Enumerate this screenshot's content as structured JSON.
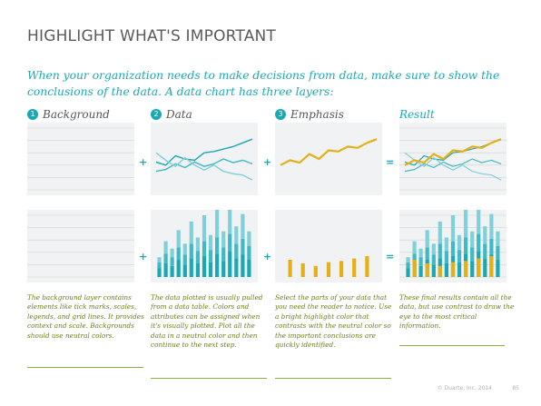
{
  "title": "HIGHLIGHT WHAT'S IMPORTANT",
  "intro": "When your organization needs to make decisions from data, make sure to show the conclusions of the data. A data chart has three layers:",
  "columns": [
    {
      "num": "1",
      "header": "Background",
      "desc": "The background layer contains elements like tick marks, scales, legends, and grid lines. It provides context and scale. Backgrounds should use neutral colors."
    },
    {
      "num": "2",
      "header": "Data",
      "desc": "The data plotted is usually pulled from a data table. Colors and attributes can be assigned when it's visually plotted. Plot all the data in a neutral color and then continue to the next step."
    },
    {
      "num": "3",
      "header": "Emphasis",
      "desc": "Select the parts of your data that you need the reader to notice. Use a bright highlight color that contrasts with the neutral color so the important conclusions are quickly identified."
    },
    {
      "num": "",
      "header": "Result",
      "desc": "These final results contain all the data, but use contrast to draw the eye to the most critical information."
    }
  ],
  "operators": {
    "plus": "+",
    "equals": "="
  },
  "footer": "© Duarte, Inc. 2014",
  "page_number": "85",
  "colors": {
    "teal": "#1aa8b4",
    "light_teal": "#7fd0d8",
    "mid_teal": "#3fb9c4",
    "gold": "#e5b017",
    "olive": "#6b7d1c",
    "green_rule": "#8ab43c",
    "panel": "#f1f2f3",
    "grid": "#cfd3d6"
  },
  "chart_data": [
    {
      "type": "line",
      "x": [
        0,
        1,
        2,
        3,
        4,
        5,
        6,
        7,
        8,
        9,
        10
      ],
      "ylim": [
        0,
        100
      ],
      "series": [
        {
          "color_key": "teal",
          "values": [
            45,
            40,
            55,
            50,
            48,
            60,
            62,
            66,
            70,
            76,
            82
          ]
        },
        {
          "color_key": "mid_teal",
          "values": [
            30,
            33,
            42,
            36,
            45,
            38,
            42,
            50,
            44,
            48,
            42
          ]
        },
        {
          "color_key": "light_teal",
          "values": [
            60,
            48,
            38,
            52,
            40,
            32,
            40,
            30,
            26,
            24,
            16
          ]
        }
      ],
      "highlight": {
        "color_key": "gold",
        "values": [
          40,
          48,
          44,
          58,
          50,
          64,
          62,
          70,
          68,
          76,
          82
        ]
      }
    },
    {
      "type": "bar",
      "categories": [
        "1",
        "2",
        "3",
        "4",
        "5",
        "6",
        "7",
        "8",
        "9",
        "10",
        "11",
        "12",
        "13",
        "14",
        "15"
      ],
      "ylim": [
        0,
        100
      ],
      "series": [
        {
          "color_key": "teal",
          "values": [
            14,
            22,
            18,
            28,
            20,
            30,
            22,
            34,
            24,
            38,
            26,
            42,
            30,
            36,
            28
          ]
        },
        {
          "color_key": "mid_teal",
          "values": [
            10,
            16,
            14,
            20,
            16,
            24,
            20,
            24,
            20,
            26,
            22,
            28,
            24,
            26,
            22
          ]
        },
        {
          "color_key": "light_teal",
          "values": [
            8,
            20,
            14,
            28,
            18,
            36,
            22,
            42,
            24,
            50,
            26,
            58,
            28,
            40,
            24
          ]
        }
      ],
      "highlight": {
        "color_key": "gold",
        "values": [
          0,
          28,
          0,
          22,
          0,
          18,
          0,
          24,
          0,
          26,
          0,
          30,
          0,
          34,
          0
        ]
      }
    }
  ]
}
